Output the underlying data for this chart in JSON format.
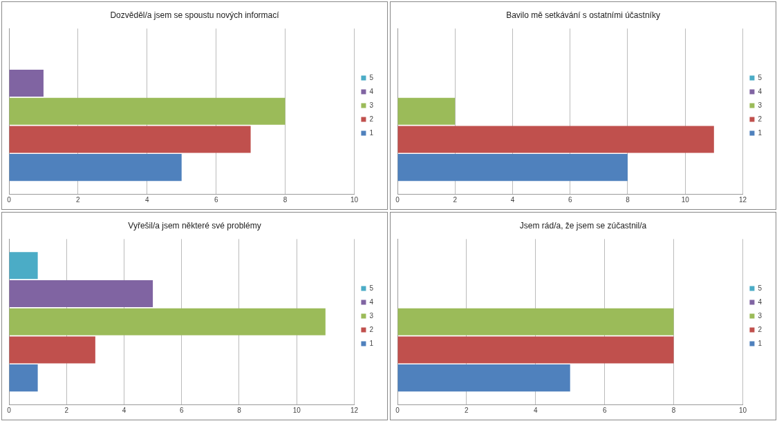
{
  "chart_data": [
    {
      "type": "bar",
      "orientation": "horizontal",
      "title": "Dozvěděl/a jsem se spoustu nových informací",
      "categories": [
        null
      ],
      "xlim": [
        0,
        10
      ],
      "xticks": [
        0,
        2,
        4,
        6,
        8,
        10
      ],
      "grid": "x",
      "legend": "right",
      "series": [
        {
          "name": "1",
          "color": "#4f81bd",
          "values": [
            5
          ]
        },
        {
          "name": "2",
          "color": "#c0504d",
          "values": [
            7
          ]
        },
        {
          "name": "3",
          "color": "#9bbb59",
          "values": [
            8
          ]
        },
        {
          "name": "4",
          "color": "#8064a2",
          "values": [
            1
          ]
        },
        {
          "name": "5",
          "color": "#4bacc6",
          "values": [
            null
          ]
        }
      ]
    },
    {
      "type": "bar",
      "orientation": "horizontal",
      "title": "Bavilo mě setkávání s ostatními účastníky",
      "categories": [
        null
      ],
      "xlim": [
        0,
        12
      ],
      "xticks": [
        0,
        2,
        4,
        6,
        8,
        10,
        12
      ],
      "grid": "x",
      "legend": "right",
      "series": [
        {
          "name": "1",
          "color": "#4f81bd",
          "values": [
            8
          ]
        },
        {
          "name": "2",
          "color": "#c0504d",
          "values": [
            11
          ]
        },
        {
          "name": "3",
          "color": "#9bbb59",
          "values": [
            2
          ]
        },
        {
          "name": "4",
          "color": "#8064a2",
          "values": [
            null
          ]
        },
        {
          "name": "5",
          "color": "#4bacc6",
          "values": [
            null
          ]
        }
      ]
    },
    {
      "type": "bar",
      "orientation": "horizontal",
      "title": "Vyřešil/a jsem některé své problémy",
      "categories": [
        null
      ],
      "xlim": [
        0,
        12
      ],
      "xticks": [
        0,
        2,
        4,
        6,
        8,
        10,
        12
      ],
      "grid": "x",
      "legend": "right",
      "series": [
        {
          "name": "1",
          "color": "#4f81bd",
          "values": [
            1
          ]
        },
        {
          "name": "2",
          "color": "#c0504d",
          "values": [
            3
          ]
        },
        {
          "name": "3",
          "color": "#9bbb59",
          "values": [
            11
          ]
        },
        {
          "name": "4",
          "color": "#8064a2",
          "values": [
            5
          ]
        },
        {
          "name": "5",
          "color": "#4bacc6",
          "values": [
            1
          ]
        }
      ]
    },
    {
      "type": "bar",
      "orientation": "horizontal",
      "title": "Jsem rád/a, že jsem se zúčastnil/a",
      "categories": [
        null
      ],
      "xlim": [
        0,
        10
      ],
      "xticks": [
        0,
        2,
        4,
        6,
        8,
        10
      ],
      "grid": "x",
      "legend": "right",
      "series": [
        {
          "name": "1",
          "color": "#4f81bd",
          "values": [
            5
          ]
        },
        {
          "name": "2",
          "color": "#c0504d",
          "values": [
            8
          ]
        },
        {
          "name": "3",
          "color": "#9bbb59",
          "values": [
            8
          ]
        },
        {
          "name": "4",
          "color": "#8064a2",
          "values": [
            null
          ]
        },
        {
          "name": "5",
          "color": "#4bacc6",
          "values": [
            null
          ]
        }
      ]
    }
  ]
}
